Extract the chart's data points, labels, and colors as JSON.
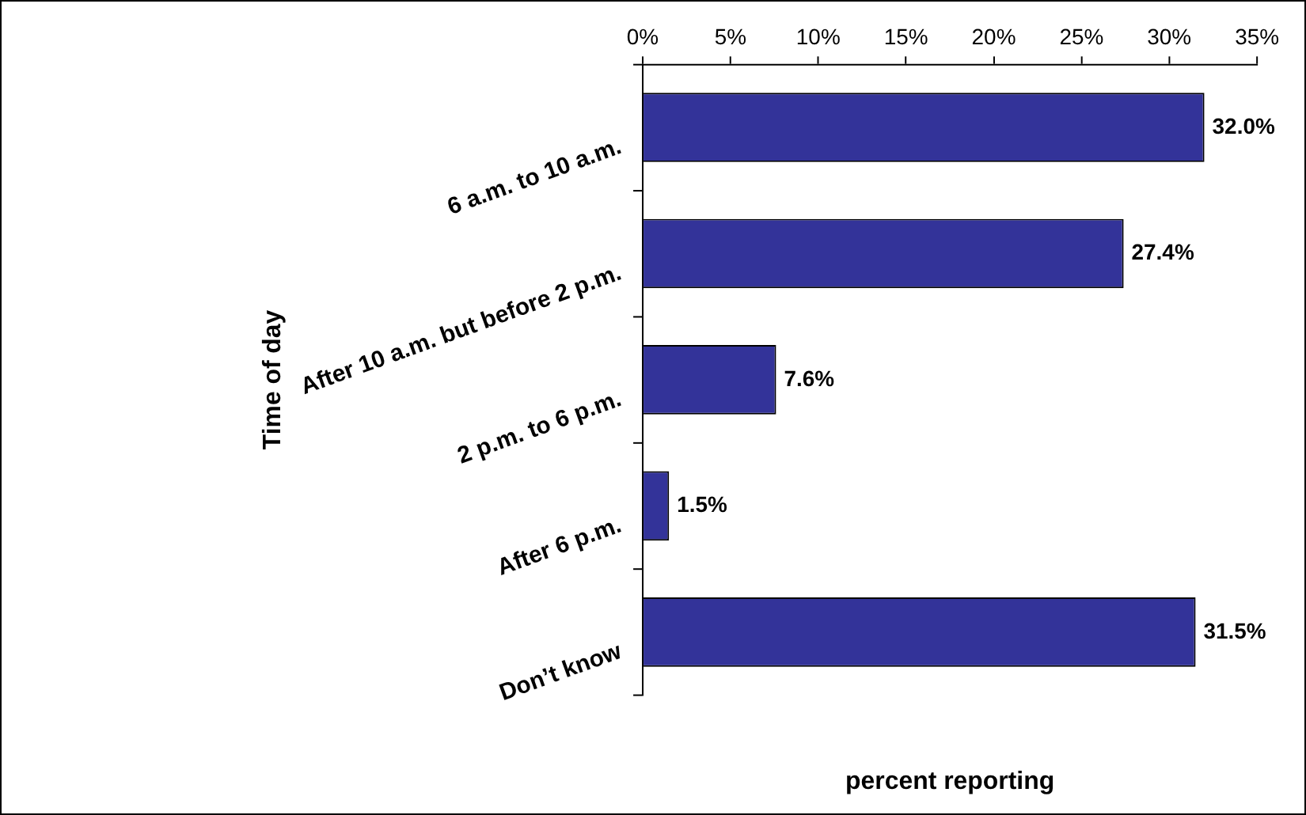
{
  "chart_data": {
    "type": "bar",
    "orientation": "horizontal",
    "xlabel": "percent reporting",
    "ylabel": "Time of day",
    "categories": [
      "6 a.m. to 10 a.m.",
      "After 10 a.m. but before 2 p.m.",
      "2 p.m. to 6 p.m.",
      "After 6 p.m.",
      "Don’t know"
    ],
    "values": [
      32.0,
      27.4,
      7.6,
      1.5,
      31.5
    ],
    "value_labels": [
      "32.0%",
      "27.4%",
      "7.6%",
      "1.5%",
      "31.5%"
    ],
    "color": "#333399",
    "xlim": [
      0,
      35
    ],
    "xticks": [
      {
        "value": 0,
        "label": "0%"
      },
      {
        "value": 5,
        "label": "5%"
      },
      {
        "value": 10,
        "label": "10%"
      },
      {
        "value": 15,
        "label": "15%"
      },
      {
        "value": 20,
        "label": "20%"
      },
      {
        "value": 25,
        "label": "25%"
      },
      {
        "value": 30,
        "label": "30%"
      },
      {
        "value": 35,
        "label": "35%"
      }
    ],
    "grid": false,
    "legend": false
  }
}
